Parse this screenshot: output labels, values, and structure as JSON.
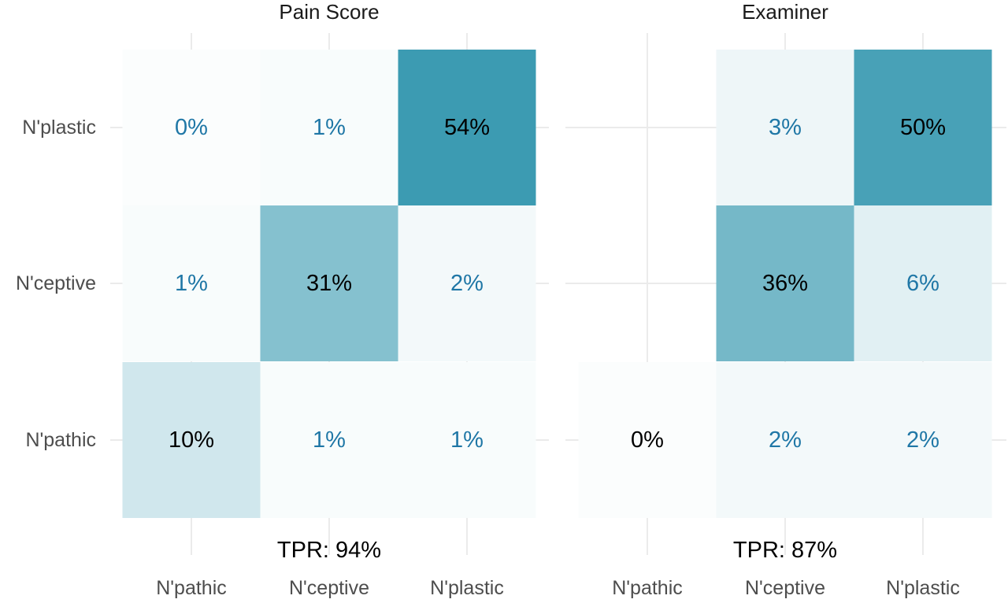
{
  "chart_data": [
    {
      "type": "heatmap",
      "title": "Pain Score",
      "x_categories": [
        "N'pathic",
        "N'ceptive",
        "N'plastic"
      ],
      "y_categories": [
        "N'pathic",
        "N'ceptive",
        "N'plastic"
      ],
      "cells": [
        {
          "x": "N'pathic",
          "y": "N'plastic",
          "value": 0,
          "label": "0%"
        },
        {
          "x": "N'ceptive",
          "y": "N'plastic",
          "value": 1,
          "label": "1%"
        },
        {
          "x": "N'plastic",
          "y": "N'plastic",
          "value": 54,
          "label": "54%"
        },
        {
          "x": "N'pathic",
          "y": "N'ceptive",
          "value": 1,
          "label": "1%"
        },
        {
          "x": "N'ceptive",
          "y": "N'ceptive",
          "value": 31,
          "label": "31%"
        },
        {
          "x": "N'plastic",
          "y": "N'ceptive",
          "value": 2,
          "label": "2%"
        },
        {
          "x": "N'pathic",
          "y": "N'pathic",
          "value": 10,
          "label": "10%"
        },
        {
          "x": "N'ceptive",
          "y": "N'pathic",
          "value": 1,
          "label": "1%"
        },
        {
          "x": "N'plastic",
          "y": "N'pathic",
          "value": 1,
          "label": "1%"
        }
      ],
      "annotation": "TPR: 94%"
    },
    {
      "type": "heatmap",
      "title": "Examiner",
      "x_categories": [
        "N'pathic",
        "N'ceptive",
        "N'plastic"
      ],
      "y_categories": [
        "N'pathic",
        "N'ceptive",
        "N'plastic"
      ],
      "cells": [
        {
          "x": "N'ceptive",
          "y": "N'plastic",
          "value": 3,
          "label": "3%"
        },
        {
          "x": "N'plastic",
          "y": "N'plastic",
          "value": 50,
          "label": "50%"
        },
        {
          "x": "N'ceptive",
          "y": "N'ceptive",
          "value": 36,
          "label": "36%"
        },
        {
          "x": "N'plastic",
          "y": "N'ceptive",
          "value": 6,
          "label": "6%"
        },
        {
          "x": "N'pathic",
          "y": "N'pathic",
          "value": 0,
          "label": "0%",
          "diagonal": true
        },
        {
          "x": "N'ceptive",
          "y": "N'pathic",
          "value": 2,
          "label": "2%"
        },
        {
          "x": "N'plastic",
          "y": "N'pathic",
          "value": 2,
          "label": "2%"
        }
      ],
      "annotation": "TPR: 87%"
    }
  ],
  "colors": {
    "fill_high": "#3c9bb2",
    "fill_low": "#ffffff",
    "diagonal_text": "#000000",
    "off_diagonal_text": "#1f77a6"
  }
}
